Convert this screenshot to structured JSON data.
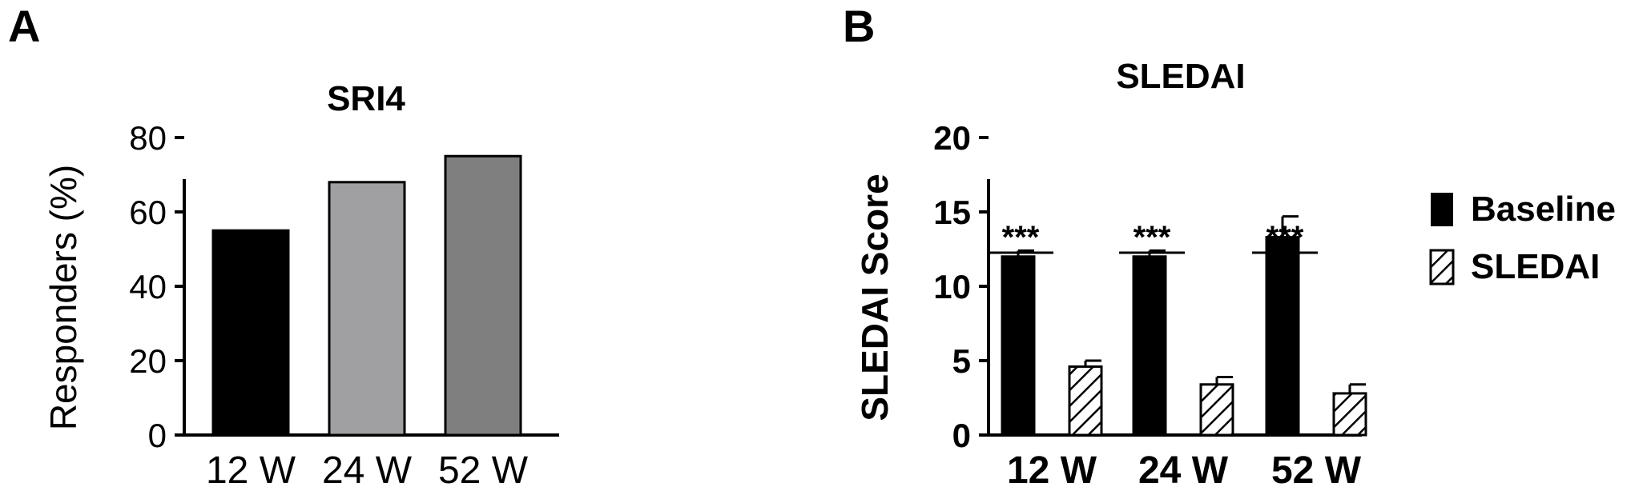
{
  "chart_data": [
    {
      "panel": "A",
      "type": "bar",
      "title": "SRI4",
      "xlabel": "",
      "ylabel": "Responders (%)",
      "ylim": [
        0,
        80
      ],
      "yticks": [
        "0",
        "20",
        "40",
        "60",
        "80"
      ],
      "categories": [
        "12 W",
        "24 W",
        "52 W"
      ],
      "values": [
        55,
        68,
        75
      ],
      "colors": [
        "#000000",
        "#a0a0a3",
        "#7f7f7f"
      ],
      "grid": false
    },
    {
      "panel": "B",
      "type": "bar",
      "title": "SLEDAI",
      "xlabel": "",
      "ylabel": "SLEDAI Score",
      "ylim": [
        0,
        20
      ],
      "yticks": [
        "0",
        "5",
        "10",
        "15",
        "20"
      ],
      "categories": [
        "12 W",
        "24 W",
        "52 W"
      ],
      "series": [
        {
          "name": "Baseline",
          "values": [
            12.0,
            12.0,
            13.3
          ],
          "errors": [
            0.4,
            0.4,
            1.4
          ],
          "fill": "solid",
          "color": "#000000"
        },
        {
          "name": "SLEDAI",
          "values": [
            4.6,
            3.4,
            2.8
          ],
          "errors": [
            0.4,
            0.5,
            0.6
          ],
          "fill": "hatched",
          "color": "#000000"
        }
      ],
      "significance": [
        "***",
        "***",
        "***"
      ],
      "legend": "right",
      "grid": false
    }
  ]
}
